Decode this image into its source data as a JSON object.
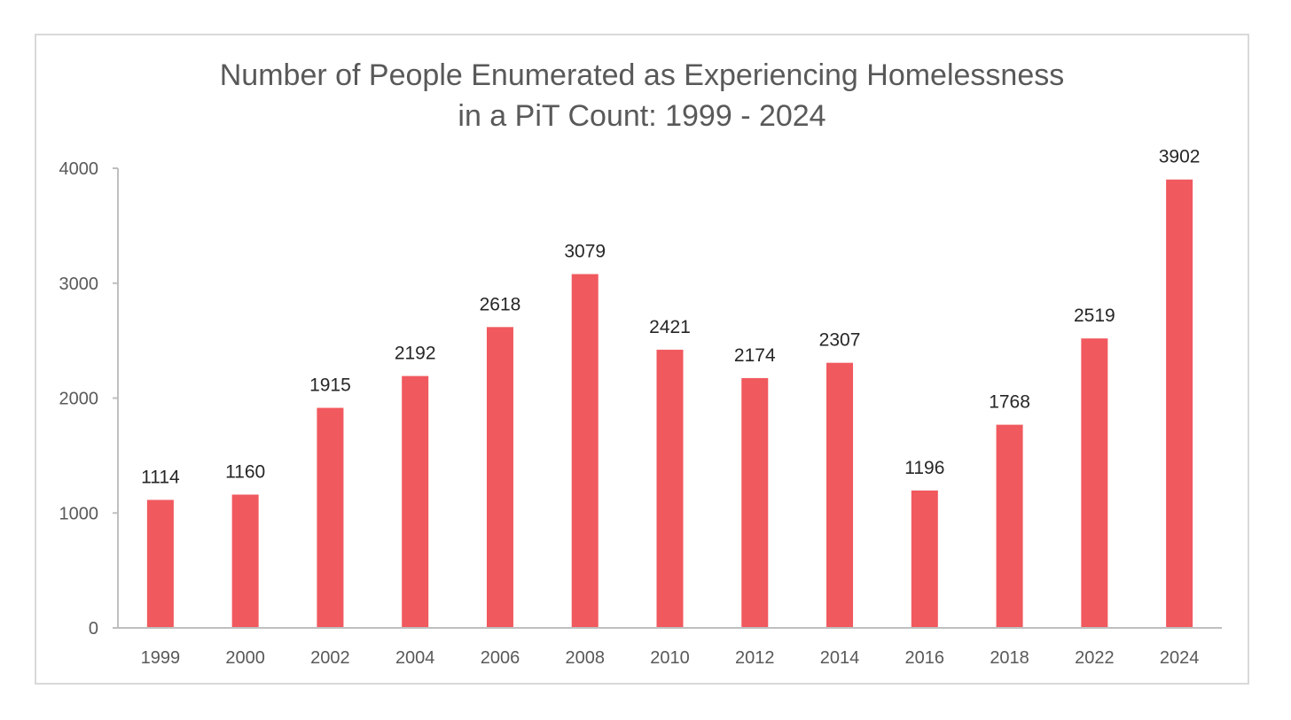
{
  "chart_data": {
    "type": "bar",
    "title_lines": [
      "Number of People Enumerated as Experiencing Homelessness",
      "in a PiT Count: 1999 - 2024"
    ],
    "xlabel": "",
    "ylabel": "",
    "categories": [
      "1999",
      "2000",
      "2002",
      "2004",
      "2006",
      "2008",
      "2010",
      "2012",
      "2014",
      "2016",
      "2018",
      "2022",
      "2024"
    ],
    "series": [
      {
        "values": [
          1114,
          1160,
          1915,
          2192,
          2618,
          3079,
          2421,
          2174,
          2307,
          1196,
          1768,
          2519,
          3902
        ],
        "color": "#f0595e"
      }
    ],
    "ylim": [
      0,
      4000
    ],
    "yticks": [
      0,
      1000,
      2000,
      3000,
      4000
    ],
    "data_labels": true,
    "grid": false,
    "legend": "none"
  }
}
